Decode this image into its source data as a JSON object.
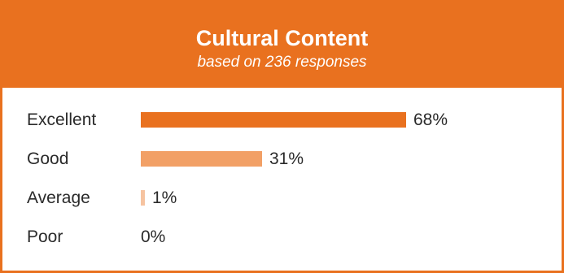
{
  "header": {
    "title": "Cultural Content",
    "subtitle": "based on 236 responses"
  },
  "colors": {
    "accent": "#e9711f",
    "bars": [
      "#e9711f",
      "#f2a066",
      "#f6c3a0",
      "#f9dcc6"
    ]
  },
  "chart_data": {
    "type": "bar",
    "orientation": "horizontal",
    "title": "Cultural Content",
    "subtitle": "based on 236 responses",
    "categories": [
      "Excellent",
      "Good",
      "Average",
      "Poor"
    ],
    "values": [
      68,
      31,
      1,
      0
    ],
    "value_labels": [
      "68%",
      "31%",
      "1%",
      "0%"
    ],
    "unit": "%",
    "xlim": [
      0,
      100
    ],
    "grid": false,
    "legend": "none"
  }
}
